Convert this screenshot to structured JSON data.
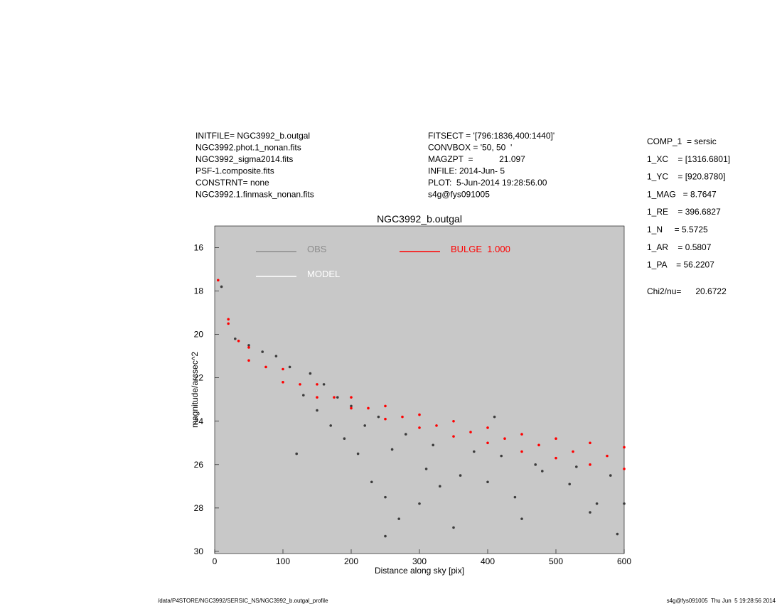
{
  "chart_data": {
    "type": "scatter",
    "title": "NGC3992_b.outgal",
    "x_label": "Distance along sky [pix]",
    "y_label": "magnitude/arcsec^2",
    "xlim": [
      0,
      600
    ],
    "xticks": [
      0,
      100,
      200,
      300,
      400,
      500,
      600
    ],
    "ylim": [
      15,
      30.1
    ],
    "y_inverted": true,
    "yticks": [
      16,
      18,
      20,
      22,
      24,
      26,
      28,
      30
    ],
    "background": "#c8c8c8",
    "series": [
      {
        "name": "OBS",
        "color": "#3c3c3c",
        "legend_color": "#8c8c8c",
        "x": [
          10,
          30,
          50,
          70,
          90,
          110,
          130,
          150,
          170,
          190,
          210,
          230,
          250,
          270,
          300,
          330,
          360,
          400,
          440,
          480,
          520,
          560,
          590,
          140,
          160,
          180,
          200,
          240,
          280,
          320,
          380,
          420,
          470,
          530,
          580,
          600,
          250,
          350,
          450,
          550,
          120,
          220,
          260,
          310,
          410
        ],
        "values": [
          17.8,
          20.2,
          20.5,
          20.8,
          21.0,
          21.5,
          22.8,
          23.5,
          24.2,
          24.8,
          25.5,
          26.8,
          27.5,
          28.5,
          27.8,
          27.0,
          26.5,
          26.8,
          27.5,
          26.3,
          26.9,
          27.8,
          29.2,
          21.8,
          22.3,
          22.9,
          23.3,
          23.8,
          24.6,
          25.1,
          25.4,
          25.6,
          26.0,
          26.1,
          26.5,
          27.8,
          29.3,
          28.9,
          28.5,
          28.2,
          25.5,
          24.2,
          25.3,
          26.2,
          23.8
        ]
      },
      {
        "name": "MODEL",
        "color": "#ffffff",
        "x": [],
        "values": []
      },
      {
        "name": "BULGE  1.000",
        "color": "#ff0000",
        "x": [
          5,
          20,
          50,
          100,
          150,
          200,
          250,
          300,
          350,
          400,
          450,
          500,
          550,
          600,
          20,
          50,
          100,
          150,
          200,
          250,
          300,
          350,
          400,
          450,
          500,
          550,
          600,
          35,
          75,
          125,
          175,
          225,
          275,
          325,
          375,
          425,
          475,
          525,
          575
        ],
        "values": [
          17.5,
          19.3,
          20.6,
          21.6,
          22.3,
          22.9,
          23.3,
          23.7,
          24.0,
          24.3,
          24.6,
          24.8,
          25.0,
          25.2,
          19.5,
          21.2,
          22.2,
          22.9,
          23.4,
          23.9,
          24.3,
          24.7,
          25.0,
          25.4,
          25.7,
          26.0,
          26.2,
          20.3,
          21.5,
          22.3,
          22.9,
          23.4,
          23.8,
          24.2,
          24.5,
          24.8,
          25.1,
          25.4,
          25.6
        ]
      }
    ]
  },
  "header": {
    "left": [
      "INITFILE= NGC3992_b.outgal",
      "NGC3992.phot.1_nonan.fits",
      "NGC3992_sigma2014.fits",
      "PSF-1.composite.fits",
      "CONSTRNT= none",
      "NGC3992.1.finmask_nonan.fits"
    ],
    "middle": [
      "FITSECT = '[796:1836,400:1440]'",
      "CONVBOX = '50, 50  '",
      "MAGZPT  =           21.097",
      "INFILE: 2014-Jun- 5",
      "PLOT:  5-Jun-2014 19:28:56.00",
      "s4g@fys091005"
    ]
  },
  "parameters": [
    "COMP_1  = sersic",
    "1_XC    = [1316.6801]",
    "1_YC    = [920.8780]",
    "1_MAG   = 8.7647",
    "1_RE    = 396.6827",
    "1_N     = 5.5725",
    "1_AR    = 0.5807",
    "1_PA    = 56.2207"
  ],
  "chi2": "Chi2/nu=      20.6722",
  "footer": {
    "left": "/data/P4STORE/NGC3992/SERSIC_NS/NGC3992_b.outgal_profile",
    "right": "s4g@fys091005  Thu Jun  5 19:28:56 2014"
  }
}
